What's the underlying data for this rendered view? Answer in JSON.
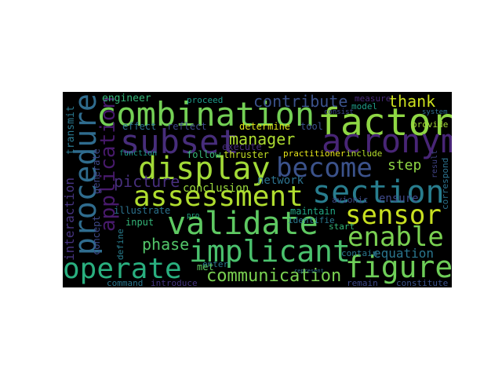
{
  "wordcloud": {
    "background": "#000000",
    "words": [
      {
        "text": "combination",
        "color": "#74d055"
      },
      {
        "text": "factor",
        "color": "#8fd744"
      },
      {
        "text": "subset",
        "color": "#472d7b"
      },
      {
        "text": "acronym",
        "color": "#482576"
      },
      {
        "text": "display",
        "color": "#a2da37"
      },
      {
        "text": "become",
        "color": "#3b528b"
      },
      {
        "text": "section",
        "color": "#287d8e"
      },
      {
        "text": "assessment",
        "color": "#b0dd2f"
      },
      {
        "text": "validate",
        "color": "#5ec962"
      },
      {
        "text": "sensor",
        "color": "#c8e020"
      },
      {
        "text": "enable",
        "color": "#7ad151"
      },
      {
        "text": "implicant",
        "color": "#4ac16d"
      },
      {
        "text": "operate",
        "color": "#29af7f"
      },
      {
        "text": "figure",
        "color": "#6ece58"
      },
      {
        "text": "communication",
        "color": "#7ad151"
      },
      {
        "text": "procedure",
        "color": "#2f6c8e"
      },
      {
        "text": "application",
        "color": "#481a6c"
      },
      {
        "text": "contribute",
        "color": "#3b528b"
      },
      {
        "text": "thank",
        "color": "#cde11d"
      },
      {
        "text": "manager",
        "color": "#addc30"
      },
      {
        "text": "step",
        "color": "#8fd744"
      },
      {
        "text": "picture",
        "color": "#472f7d"
      },
      {
        "text": "network",
        "color": "#2c728e"
      },
      {
        "text": "ensure",
        "color": "#3e4989"
      },
      {
        "text": "conclusion",
        "color": "#9bd93c"
      },
      {
        "text": "phase",
        "color": "#52c569"
      },
      {
        "text": "equation",
        "color": "#2a768e"
      },
      {
        "text": "interaction",
        "color": "#46337f"
      },
      {
        "text": "transmit",
        "color": "#2a788e"
      },
      {
        "text": "engineer",
        "color": "#35b779"
      },
      {
        "text": "effect",
        "color": "#2c728e"
      },
      {
        "text": "reflect",
        "color": "#3e4989"
      },
      {
        "text": "determine",
        "color": "#dde318"
      },
      {
        "text": "execute",
        "color": "#472c7a"
      },
      {
        "text": "thruster",
        "color": "#c2df23"
      },
      {
        "text": "practitioner",
        "color": "#e5e419"
      },
      {
        "text": "include",
        "color": "#b5de2b"
      },
      {
        "text": "proceed",
        "color": "#1e9b8a"
      },
      {
        "text": "tool",
        "color": "#3b528b"
      },
      {
        "text": "measure",
        "color": "#482979"
      },
      {
        "text": "model",
        "color": "#1f9e89"
      },
      {
        "text": "provide",
        "color": "#a5db36"
      },
      {
        "text": "system",
        "color": "#2e6e8e"
      },
      {
        "text": "consist",
        "color": "#3e4989"
      },
      {
        "text": "follow",
        "color": "#38b977"
      },
      {
        "text": "function",
        "color": "#1f9a8a"
      },
      {
        "text": "generate",
        "color": "#3f4788"
      },
      {
        "text": "input",
        "color": "#35b779"
      },
      {
        "text": "avionic",
        "color": "#3e4a89"
      },
      {
        "text": "maintain",
        "color": "#22a785"
      },
      {
        "text": "illustrate",
        "color": "#2c728e"
      },
      {
        "text": "start",
        "color": "#35b779"
      },
      {
        "text": "identifie",
        "color": "#2a788e"
      },
      {
        "text": "enter",
        "color": "#2a788e"
      },
      {
        "text": "contain",
        "color": "#2a788e"
      },
      {
        "text": "concept",
        "color": "#3e4989"
      },
      {
        "text": "define",
        "color": "#287d8e"
      },
      {
        "text": "command",
        "color": "#2a768e"
      },
      {
        "text": "introduce",
        "color": "#453581"
      },
      {
        "text": "remain",
        "color": "#3e4989"
      },
      {
        "text": "constitute",
        "color": "#3b528b"
      },
      {
        "text": "correspond",
        "color": "#2c728e"
      },
      {
        "text": "result",
        "color": "#414487"
      },
      {
        "text": "represent",
        "color": "#2e6f8e"
      },
      {
        "text": "pro",
        "color": "#22a785"
      },
      {
        "text": "met",
        "color": "#5ec962"
      }
    ]
  }
}
